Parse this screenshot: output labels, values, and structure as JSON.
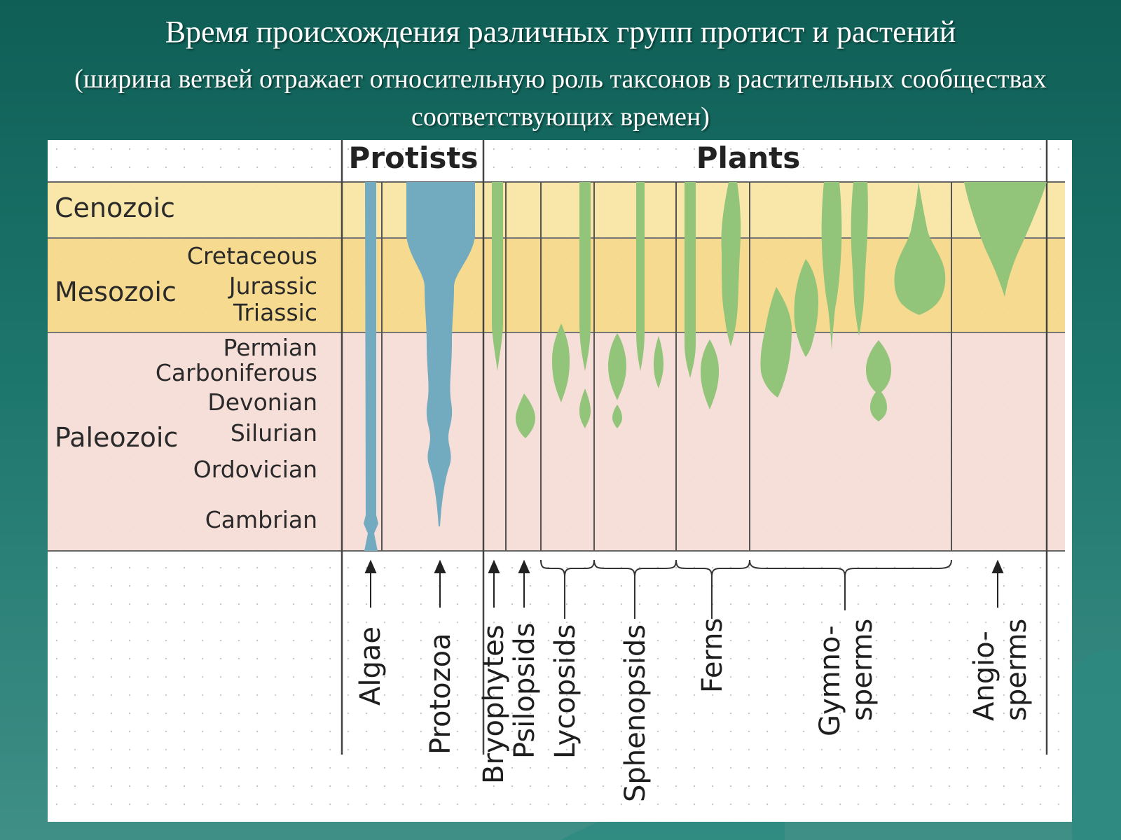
{
  "title": "Время происхождения различных групп протист и растений",
  "subtitle": "(ширина ветвей отражает относительную роль таксонов в растительных сообществах соответствующих времен)",
  "colors": {
    "background": "#1a6f65",
    "cenozoic_band": "#f8e6a4",
    "mesozoic_band": "#f6d889",
    "paleozoic_band": "#f6dcd7",
    "protists_branch": "#72aac0",
    "plants_branch": "#92c47a",
    "grid_line": "#555555"
  },
  "headers": {
    "protists": "Protists",
    "plants": "Plants"
  },
  "eras": [
    {
      "name": "Cenozoic"
    },
    {
      "name": "Mesozoic"
    },
    {
      "name": "Paleozoic"
    }
  ],
  "periods": [
    "Cretaceous",
    "Jurassic",
    "Triassic",
    "Permian",
    "Carboniferous",
    "Devonian",
    "Silurian",
    "Ordovician",
    "Cambrian"
  ],
  "taxa": {
    "algae": "Algae",
    "protozoa": "Protozoa",
    "bryophytes": "Bryophytes",
    "psilopsids": "Psilopsids",
    "lycopsids": "Lycopsids",
    "sphenopsids": "Sphenopsids",
    "ferns": "Ferns",
    "gymnosperms": [
      "Gymno-",
      "sperms"
    ],
    "angiosperms": [
      "Angio-",
      "sperms"
    ]
  }
}
